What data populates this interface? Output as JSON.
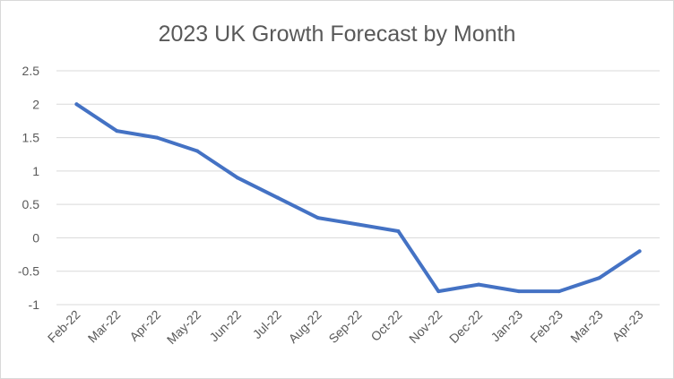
{
  "colors": {
    "series": "#4472c4",
    "grid": "#d9d9d9",
    "text": "#595959"
  },
  "chart_data": {
    "type": "line",
    "title": "2023 UK Growth Forecast by Month",
    "xlabel": "",
    "ylabel": "",
    "categories": [
      "Feb-22",
      "Mar-22",
      "Apr-22",
      "May-22",
      "Jun-22",
      "Jul-22",
      "Aug-22",
      "Sep-22",
      "Oct-22",
      "Nov-22",
      "Dec-22",
      "Jan-23",
      "Feb-23",
      "Mar-23",
      "Apr-23"
    ],
    "series": [
      {
        "values": [
          2.0,
          1.6,
          1.5,
          1.3,
          0.9,
          0.6,
          0.3,
          0.2,
          0.1,
          -0.8,
          -0.7,
          -0.8,
          -0.8,
          -0.6,
          -0.2
        ]
      }
    ],
    "ylim": [
      -1,
      2.5
    ],
    "yticks": [
      "2.5",
      "2",
      "1.5",
      "1",
      "0.5",
      "0",
      "-0.5",
      "-1"
    ],
    "grid": true,
    "legend": "none"
  }
}
